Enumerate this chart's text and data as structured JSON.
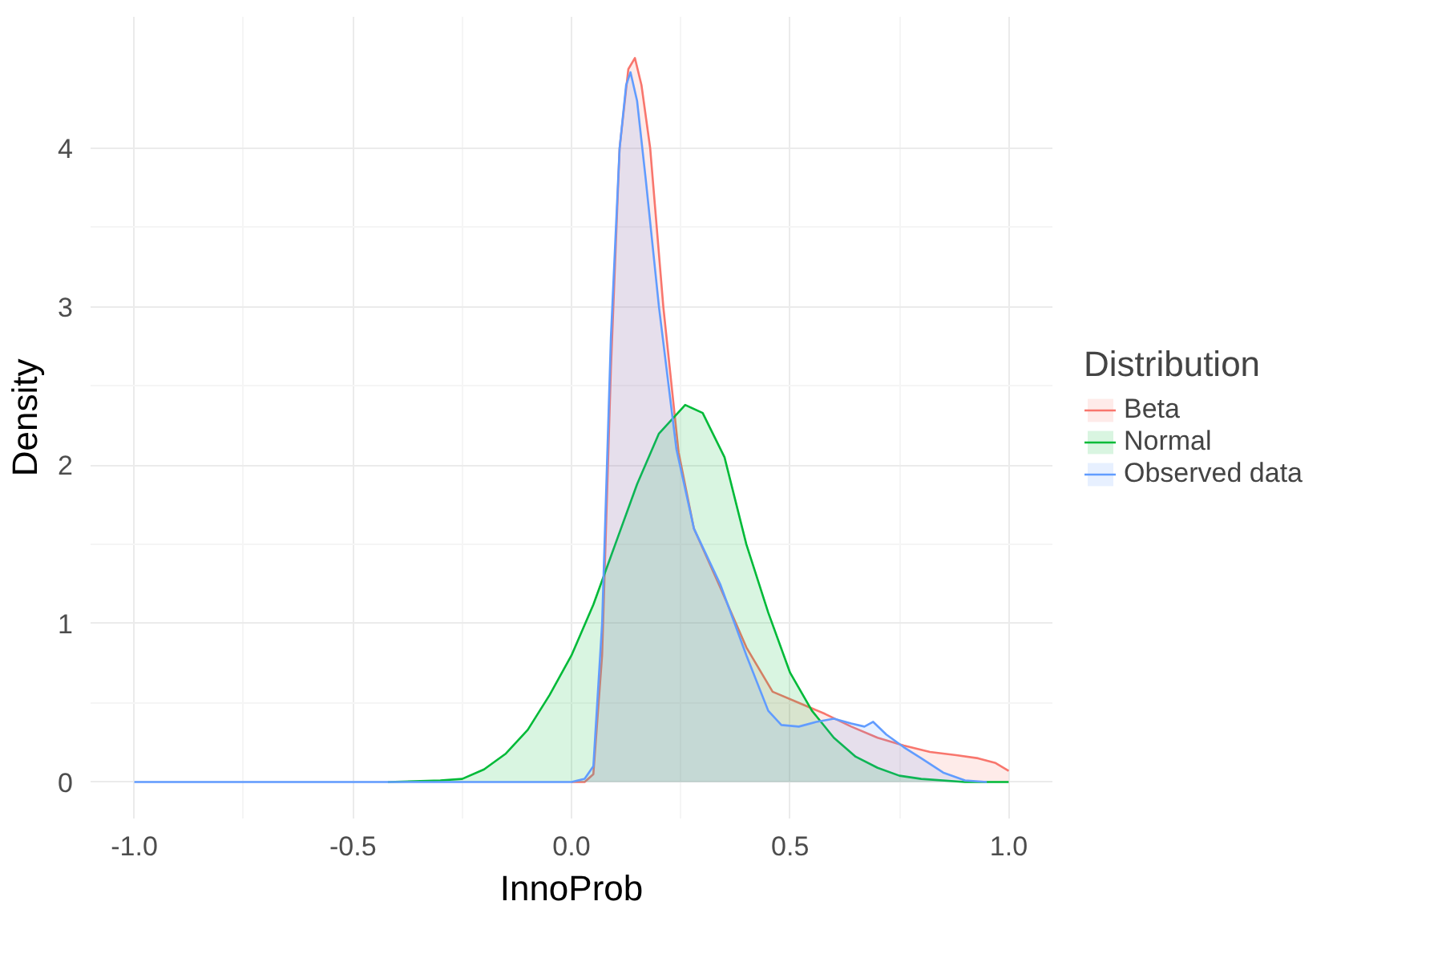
{
  "chart_data": {
    "type": "area",
    "xlabel": "InnoProb",
    "ylabel": "Density",
    "legend_title": "Distribution",
    "xlim": [
      -1.1,
      1.1
    ],
    "ylim": [
      -0.23,
      4.83
    ],
    "xticks": [
      {
        "value": -1.0,
        "label": "-1.0"
      },
      {
        "value": -0.5,
        "label": "-0.5"
      },
      {
        "value": 0.0,
        "label": "0.0"
      },
      0.5,
      {
        "value": 1.0,
        "label": "1.0"
      }
    ],
    "yticks": [
      0,
      1,
      2,
      3,
      4
    ],
    "grid": true,
    "legend": "right",
    "series": [
      {
        "name": "Beta",
        "color": "#f8766d",
        "x": [
          0.0,
          0.03,
          0.05,
          0.07,
          0.09,
          0.11,
          0.13,
          0.145,
          0.16,
          0.18,
          0.21,
          0.245,
          0.28,
          0.34,
          0.4,
          0.46,
          0.52,
          0.58,
          0.64,
          0.7,
          0.76,
          0.82,
          0.88,
          0.93,
          0.97,
          1.0
        ],
        "values": [
          0,
          0,
          0.05,
          0.8,
          2.6,
          4.0,
          4.5,
          4.57,
          4.4,
          4.0,
          3.0,
          2.08,
          1.6,
          1.23,
          0.85,
          0.57,
          0.5,
          0.43,
          0.35,
          0.28,
          0.23,
          0.19,
          0.17,
          0.15,
          0.12,
          0.07
        ]
      },
      {
        "name": "Normal",
        "color": "#00ba38",
        "x": [
          -0.42,
          -0.3,
          -0.25,
          -0.2,
          -0.15,
          -0.1,
          -0.05,
          0.0,
          0.05,
          0.1,
          0.15,
          0.2,
          0.26,
          0.3,
          0.35,
          0.4,
          0.45,
          0.5,
          0.55,
          0.6,
          0.65,
          0.7,
          0.75,
          0.8,
          0.9,
          1.0
        ],
        "values": [
          0,
          0.01,
          0.02,
          0.08,
          0.18,
          0.33,
          0.55,
          0.8,
          1.12,
          1.5,
          1.88,
          2.2,
          2.38,
          2.33,
          2.05,
          1.5,
          1.07,
          0.69,
          0.45,
          0.28,
          0.16,
          0.09,
          0.04,
          0.02,
          0,
          0
        ]
      },
      {
        "name": "Observed data",
        "color": "#619cff",
        "x": [
          -1.0,
          -0.4,
          0.0,
          0.03,
          0.05,
          0.07,
          0.09,
          0.11,
          0.125,
          0.135,
          0.15,
          0.17,
          0.2,
          0.24,
          0.28,
          0.34,
          0.4,
          0.45,
          0.48,
          0.52,
          0.56,
          0.6,
          0.64,
          0.67,
          0.69,
          0.72,
          0.76,
          0.8,
          0.85,
          0.9,
          0.95
        ],
        "values": [
          0,
          0,
          0,
          0.02,
          0.1,
          1.0,
          2.8,
          4.0,
          4.4,
          4.48,
          4.3,
          3.8,
          3.0,
          2.1,
          1.6,
          1.25,
          0.8,
          0.45,
          0.36,
          0.35,
          0.38,
          0.4,
          0.37,
          0.35,
          0.38,
          0.3,
          0.22,
          0.15,
          0.06,
          0.01,
          0
        ]
      }
    ]
  }
}
